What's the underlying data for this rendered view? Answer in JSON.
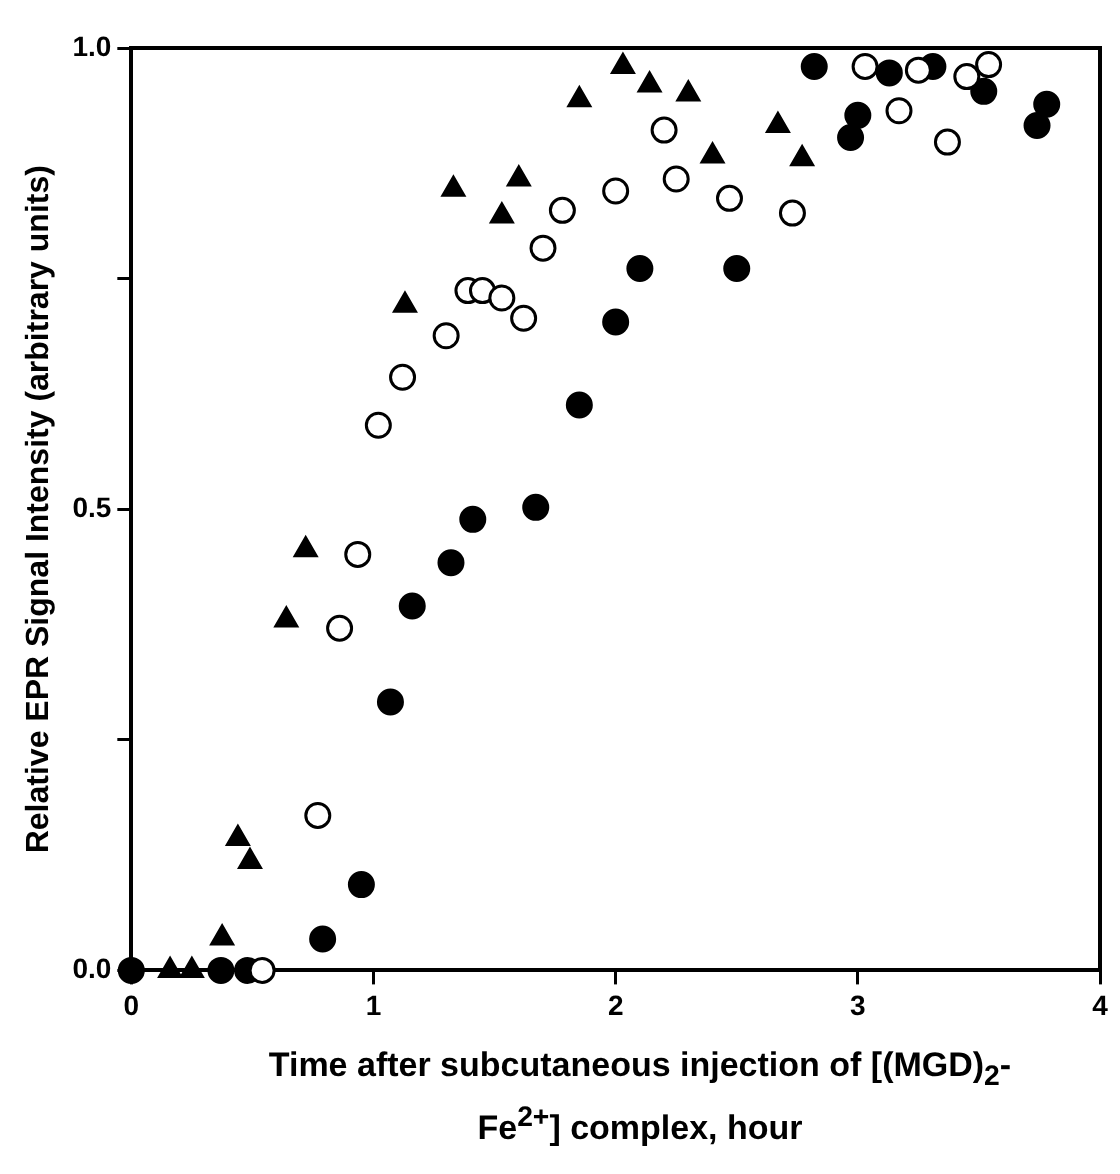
{
  "chart_data": {
    "type": "scatter",
    "xlabel": "Time after subcutaneous injection of [(MGD)$_{2}$-Fe$^{2+}$] complex, hour",
    "ylabel": "Relative EPR Signal Intensity (arbitrary units)",
    "xlim": [
      0,
      4
    ],
    "xticks": [
      0,
      1,
      2,
      3,
      4
    ],
    "ylim": [
      0,
      1
    ],
    "yticks": [
      {
        "value": 0,
        "label": "0.0"
      },
      {
        "value": 0.25,
        "label": null
      },
      {
        "value": 0.5,
        "label": "0.5"
      },
      {
        "value": 0.75,
        "label": null
      },
      {
        "value": 1,
        "label": "1.0"
      }
    ],
    "grid": false,
    "legend": false,
    "series": [
      {
        "color": "#000000",
        "marker": "triangle",
        "x": [
          0.16,
          0.25,
          0.375,
          0.44,
          0.49,
          0.64,
          0.72,
          1.13,
          1.33,
          1.53,
          1.6,
          1.85,
          2.03,
          2.14,
          2.3,
          2.4,
          2.67,
          2.77
        ],
        "values": [
          0,
          0,
          0.035,
          0.143,
          0.118,
          0.38,
          0.456,
          0.721,
          0.847,
          0.818,
          0.858,
          0.944,
          0.98,
          0.96,
          0.95,
          0.883,
          0.916,
          0.88
        ]
      },
      {
        "color": "#ffffff",
        "marker": "circle",
        "x": [
          0.54,
          0.77,
          0.86,
          0.935,
          1.02,
          1.12,
          1.3,
          1.39,
          1.45,
          1.53,
          1.62,
          1.7,
          1.78,
          2.0,
          2.2,
          2.25,
          2.47,
          2.73,
          3.03,
          3.17,
          3.25,
          3.37,
          3.45,
          3.54
        ],
        "values": [
          0,
          0.168,
          0.371,
          0.451,
          0.591,
          0.643,
          0.688,
          0.737,
          0.737,
          0.729,
          0.707,
          0.783,
          0.824,
          0.845,
          0.911,
          0.858,
          0.837,
          0.821,
          0.98,
          0.932,
          0.976,
          0.898,
          0.969,
          0.982
        ]
      },
      {
        "color": "#000000",
        "marker": "circle",
        "x": [
          0,
          0.37,
          0.48,
          0.79,
          0.95,
          1.07,
          1.16,
          1.32,
          1.41,
          1.67,
          1.85,
          2.0,
          2.1,
          2.5,
          2.82,
          2.97,
          3.0,
          3.13,
          3.31,
          3.52,
          3.74,
          3.78
        ],
        "values": [
          0,
          0,
          0,
          0.034,
          0.093,
          0.291,
          0.395,
          0.442,
          0.489,
          0.502,
          0.613,
          0.703,
          0.761,
          0.761,
          0.98,
          0.903,
          0.927,
          0.973,
          0.98,
          0.953,
          0.916,
          0.939
        ]
      }
    ]
  }
}
